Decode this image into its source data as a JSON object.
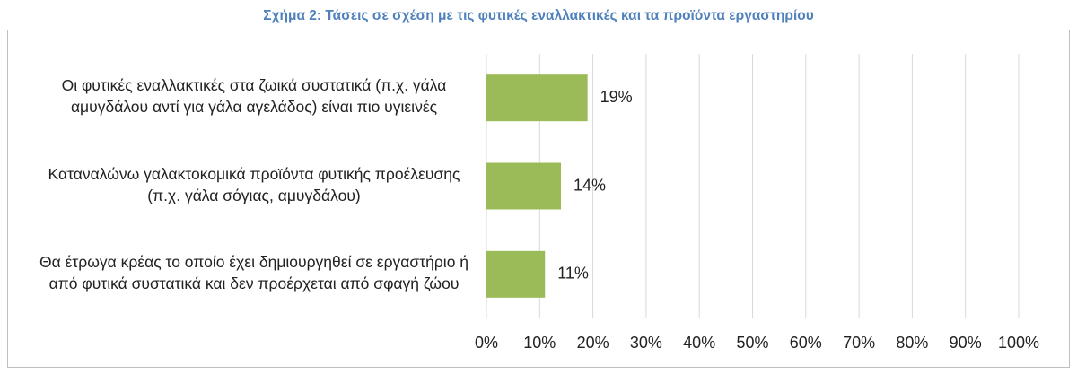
{
  "chart_data": {
    "type": "bar",
    "orientation": "horizontal",
    "title": "Σχήμα 2: Τάσεις σε σχέση με τις φυτικές εναλλακτικές και τα προϊόντα εργαστηρίου",
    "categories": [
      "Οι φυτικές εναλλακτικές στα ζωικά συστατικά (π.χ. γάλα αμυγδάλου αντί για γάλα αγελάδος) είναι πιο υγιεινές",
      "Καταναλώνω γαλακτοκομικά προϊόντα φυτικής προέλευσης (π.χ. γάλα σόγιας, αμυγδάλου)",
      "Θα έτρωγα κρέας το οποίο έχει δημιουργηθεί σε εργαστήριο ή από φυτικά συστατικά και δεν προέρχεται από σφαγή ζώου"
    ],
    "values": [
      19,
      14,
      11
    ],
    "value_labels": [
      "19%",
      "14%",
      "11%"
    ],
    "color": "#9bbb59",
    "xlim": [
      0,
      100
    ],
    "xticks": [
      {
        "value": 0,
        "label": "0%"
      },
      {
        "value": 10,
        "label": "10%"
      },
      {
        "value": 20,
        "label": "20%"
      },
      {
        "value": 30,
        "label": "30%"
      },
      {
        "value": 40,
        "label": "40%"
      },
      {
        "value": 50,
        "label": "50%"
      },
      {
        "value": 60,
        "label": "60%"
      },
      {
        "value": 70,
        "label": "70%"
      },
      {
        "value": 80,
        "label": "80%"
      },
      {
        "value": 90,
        "label": "90%"
      },
      {
        "value": 100,
        "label": "100%"
      }
    ],
    "grid": true
  }
}
